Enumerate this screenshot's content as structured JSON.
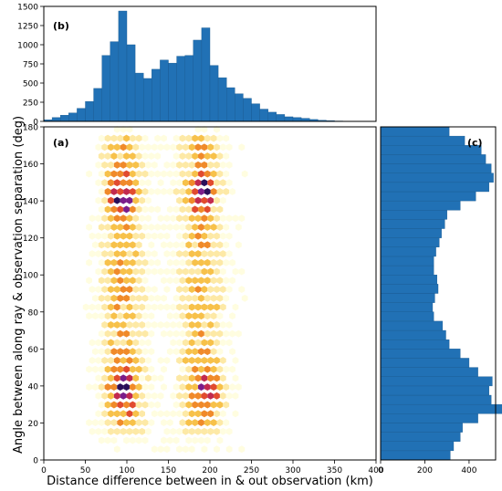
{
  "chart_data": [
    {
      "panel": "a",
      "type": "heatmap",
      "label": "(a)",
      "xlabel": "Distance difference between in & out observation (km)",
      "ylabel": "Angle between along ray & observation separation (deg)",
      "xlim": [
        0,
        400
      ],
      "ylim": [
        0,
        180
      ],
      "xticks": [
        0,
        50,
        100,
        150,
        200,
        250,
        300,
        350,
        400
      ],
      "yticks": [
        0,
        20,
        40,
        60,
        80,
        100,
        120,
        140,
        160,
        180
      ],
      "colormap": [
        "#fffde0",
        "#fde9a6",
        "#f7c14a",
        "#f08a2a",
        "#e14b2f",
        "#c22a4f",
        "#7b1d8a",
        "#2a0f5a"
      ],
      "clusters": [
        {
          "x": 95,
          "y": 142,
          "density": 1.0
        },
        {
          "x": 190,
          "y": 145,
          "density": 1.0
        },
        {
          "x": 95,
          "y": 38,
          "density": 1.0
        },
        {
          "x": 200,
          "y": 37,
          "density": 0.9
        }
      ],
      "bands": [
        {
          "x": 95,
          "y_from": 20,
          "y_to": 170,
          "density": 0.55
        },
        {
          "x": 190,
          "y_from": 20,
          "y_to": 170,
          "density": 0.5
        }
      ]
    },
    {
      "panel": "b",
      "type": "bar",
      "label": "(b)",
      "xlim": [
        0,
        400
      ],
      "ylim": [
        0,
        1500
      ],
      "yticks": [
        0,
        250,
        500,
        750,
        1000,
        1250,
        1500
      ],
      "bin_width": 10,
      "x": [
        5,
        15,
        25,
        35,
        45,
        55,
        65,
        75,
        85,
        95,
        105,
        115,
        125,
        135,
        145,
        155,
        165,
        175,
        185,
        195,
        205,
        215,
        225,
        235,
        245,
        255,
        265,
        275,
        285,
        295,
        305,
        315,
        325,
        335,
        345,
        355,
        365,
        375
      ],
      "values": [
        20,
        50,
        80,
        110,
        170,
        260,
        430,
        860,
        1040,
        1440,
        1000,
        630,
        560,
        680,
        800,
        760,
        850,
        860,
        1060,
        1220,
        730,
        570,
        440,
        360,
        300,
        230,
        160,
        120,
        90,
        60,
        50,
        40,
        25,
        15,
        10,
        5,
        3,
        2
      ],
      "color": "#2171b5"
    },
    {
      "panel": "c",
      "type": "bar",
      "orientation": "horizontal",
      "label": "(c)",
      "xlim": [
        0,
        520
      ],
      "xticks": [
        0,
        200,
        400
      ],
      "ylim": [
        0,
        180
      ],
      "bin_width": 5,
      "y": [
        2.5,
        7.5,
        12.5,
        17.5,
        22.5,
        27.5,
        32.5,
        37.5,
        42.5,
        47.5,
        52.5,
        57.5,
        62.5,
        67.5,
        72.5,
        77.5,
        82.5,
        87.5,
        92.5,
        97.5,
        102.5,
        107.5,
        112.5,
        117.5,
        122.5,
        127.5,
        132.5,
        137.5,
        142.5,
        147.5,
        152.5,
        157.5,
        162.5,
        167.5,
        172.5,
        177.5
      ],
      "values": [
        315,
        330,
        360,
        370,
        440,
        555,
        500,
        490,
        505,
        440,
        400,
        360,
        310,
        295,
        280,
        240,
        235,
        245,
        260,
        255,
        240,
        240,
        250,
        265,
        275,
        290,
        300,
        360,
        430,
        490,
        510,
        500,
        475,
        455,
        380,
        310
      ],
      "color": "#2171b5"
    }
  ]
}
